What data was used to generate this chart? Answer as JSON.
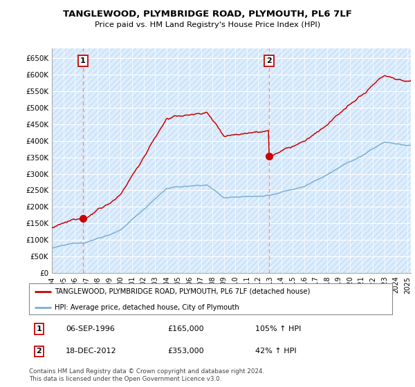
{
  "title": "TANGLEWOOD, PLYMBRIDGE ROAD, PLYMOUTH, PL6 7LF",
  "subtitle": "Price paid vs. HM Land Registry's House Price Index (HPI)",
  "ylabel_ticks": [
    "£0",
    "£50K",
    "£100K",
    "£150K",
    "£200K",
    "£250K",
    "£300K",
    "£350K",
    "£400K",
    "£450K",
    "£500K",
    "£550K",
    "£600K",
    "£650K"
  ],
  "ytick_values": [
    0,
    50000,
    100000,
    150000,
    200000,
    250000,
    300000,
    350000,
    400000,
    450000,
    500000,
    550000,
    600000,
    650000
  ],
  "xlim_start": 1994.0,
  "xlim_end": 2025.3,
  "ylim_min": 0,
  "ylim_max": 680000,
  "sale1_year": 1996.69,
  "sale1_price": 165000,
  "sale1_label": "1",
  "sale1_date": "06-SEP-1996",
  "sale1_amount": "£165,000",
  "sale1_pct": "105% ↑ HPI",
  "sale2_year": 2012.96,
  "sale2_price": 353000,
  "sale2_label": "2",
  "sale2_date": "18-DEC-2012",
  "sale2_amount": "£353,000",
  "sale2_pct": "42% ↑ HPI",
  "line_color_property": "#cc0000",
  "line_color_hpi": "#7bafd4",
  "dot_color": "#cc0000",
  "vline_color": "#ff8888",
  "bg_color": "#ddeeff",
  "hatch_color": "#c8ddf0",
  "legend_line1": "TANGLEWOOD, PLYMBRIDGE ROAD, PLYMOUTH, PL6 7LF (detached house)",
  "legend_line2": "HPI: Average price, detached house, City of Plymouth",
  "footnote": "Contains HM Land Registry data © Crown copyright and database right 2024.\nThis data is licensed under the Open Government Licence v3.0."
}
